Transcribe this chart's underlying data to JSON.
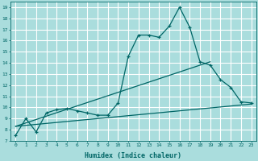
{
  "background_color": "#aadddd",
  "grid_color": "#ffffff",
  "line_color": "#006666",
  "xlabel": "Humidex (Indice chaleur)",
  "ylabel_ticks": [
    7,
    8,
    9,
    10,
    11,
    12,
    13,
    14,
    15,
    16,
    17,
    18,
    19
  ],
  "xticks": [
    0,
    1,
    2,
    3,
    4,
    5,
    6,
    7,
    8,
    9,
    10,
    11,
    12,
    13,
    14,
    15,
    16,
    17,
    18,
    19,
    20,
    21,
    22,
    23
  ],
  "xlim": [
    -0.5,
    23.5
  ],
  "ylim": [
    7,
    19.5
  ],
  "curve1_x": [
    0,
    1,
    2,
    3,
    4,
    5,
    6,
    7,
    8,
    9,
    10,
    11,
    12,
    13,
    14,
    15,
    16,
    17,
    18,
    19,
    20,
    21,
    22,
    23
  ],
  "curve1_y": [
    7.5,
    9.0,
    7.8,
    9.5,
    9.8,
    9.9,
    9.7,
    9.5,
    9.3,
    9.3,
    10.4,
    14.6,
    16.5,
    16.5,
    16.3,
    17.3,
    19.0,
    17.2,
    14.1,
    13.8,
    12.5,
    11.8,
    10.5,
    10.4
  ],
  "line2_x": [
    0,
    23
  ],
  "line2_y": [
    8.3,
    10.3
  ],
  "line3_x": [
    0,
    19
  ],
  "line3_y": [
    8.3,
    14.1
  ],
  "tick_fontsize": 4.5,
  "xlabel_fontsize": 6.0,
  "marker_size": 3.0
}
